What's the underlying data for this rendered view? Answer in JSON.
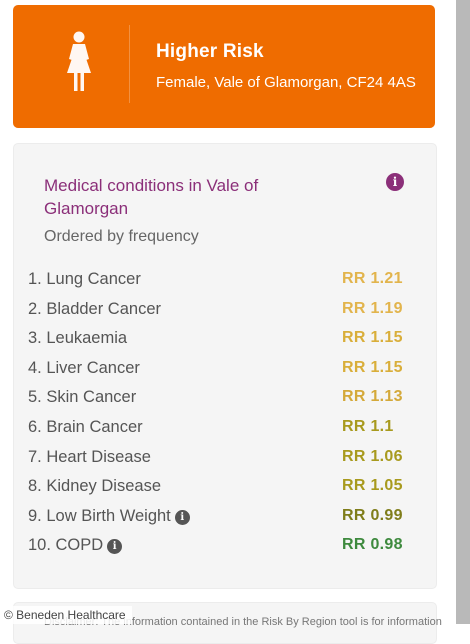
{
  "risk_card": {
    "title": "Higher Risk",
    "subtitle": "Female, Vale of Glamorgan, CF24 4AS",
    "icon": "female-person-icon",
    "background_color": "#ef6c00"
  },
  "conditions": {
    "title": "Medical conditions in Vale of Glamorgan",
    "subtitle": "Ordered by frequency",
    "title_color": "#8b2f79",
    "items": [
      {
        "label": "1. Lung Cancer",
        "rr": "RR 1.21",
        "color": "#e2b44c",
        "info": false
      },
      {
        "label": "2. Bladder Cancer",
        "rr": "RR 1.19",
        "color": "#e2b44c",
        "info": false
      },
      {
        "label": "3. Leukaemia",
        "rr": "RR 1.15",
        "color": "#d9ae3a",
        "info": false
      },
      {
        "label": "4. Liver Cancer",
        "rr": "RR 1.15",
        "color": "#d9ae3a",
        "info": false
      },
      {
        "label": "5. Skin Cancer",
        "rr": "RR 1.13",
        "color": "#d4a93a",
        "info": false
      },
      {
        "label": "6. Brain Cancer",
        "rr": "RR 1.1",
        "color": "#a89a1e",
        "info": false
      },
      {
        "label": "7. Heart Disease",
        "rr": "RR 1.06",
        "color": "#a89a1e",
        "info": false
      },
      {
        "label": "8. Kidney Disease",
        "rr": "RR 1.05",
        "color": "#a89a1e",
        "info": false
      },
      {
        "label": "9. Low Birth Weight",
        "rr": "RR 0.99",
        "color": "#7f7d1a",
        "info": true
      },
      {
        "label": "10. COPD",
        "rr": "RR 0.98",
        "color": "#3e8a3e",
        "info": true
      }
    ]
  },
  "disclaimer": {
    "text": "Disclaimer: The information contained in the Risk By Region tool is for information"
  },
  "watermark": "© Beneden Healthcare"
}
